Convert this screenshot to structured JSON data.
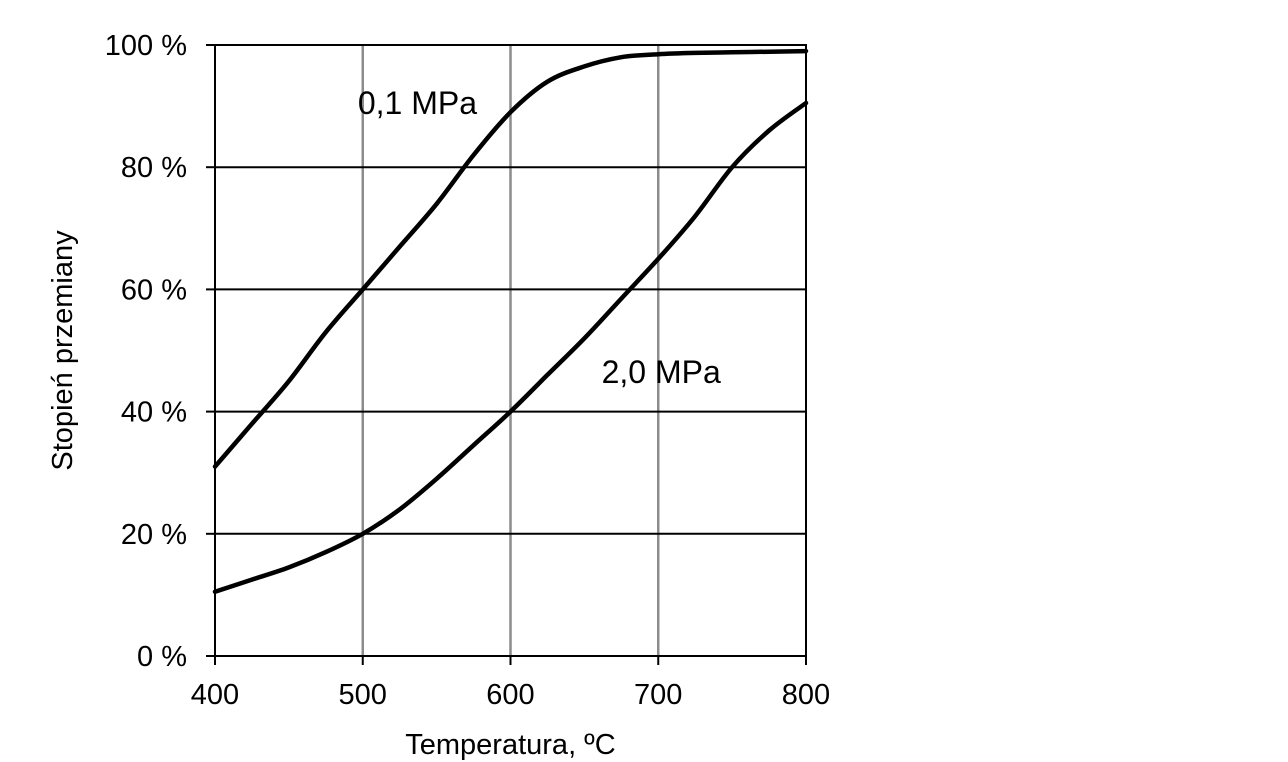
{
  "chart_data": {
    "type": "line",
    "title": "",
    "xlabel": "Temperatura, ºC",
    "ylabel": "Stopień przemiany",
    "xlim": [
      400,
      800
    ],
    "ylim": [
      0,
      100
    ],
    "x_ticks": [
      400,
      500,
      600,
      700,
      800
    ],
    "x_tick_labels": [
      "400",
      "500",
      "600",
      "700",
      "800"
    ],
    "y_ticks": [
      0,
      20,
      40,
      60,
      80,
      100
    ],
    "y_tick_labels": [
      "0 %",
      "20 %",
      "40 %",
      "60 %",
      "80 %",
      "100 %"
    ],
    "grid": true,
    "legend": "none",
    "colors": {
      "line": "#000000",
      "vertical_grid": "#8c8c8c",
      "horizontal_grid": "#000000",
      "axis": "#000000"
    },
    "series": [
      {
        "name": "0,1 MPa",
        "x": [
          400,
          425,
          450,
          475,
          500,
          525,
          550,
          575,
          600,
          625,
          650,
          675,
          700,
          725,
          750,
          775,
          800
        ],
        "y": [
          31,
          38,
          45,
          53,
          60,
          67,
          74,
          82,
          89,
          94,
          96.5,
          98,
          98.5,
          98.7,
          98.8,
          98.9,
          99
        ]
      },
      {
        "name": "2,0 MPa",
        "x": [
          400,
          425,
          450,
          475,
          500,
          525,
          550,
          575,
          600,
          625,
          650,
          675,
          700,
          725,
          750,
          775,
          800
        ],
        "y": [
          10.5,
          12.5,
          14.5,
          17,
          20,
          24,
          29,
          34.5,
          40,
          46,
          52,
          58.5,
          65,
          72,
          80,
          86,
          90.5
        ]
      }
    ],
    "annotations": [
      {
        "text": "0,1 MPa",
        "x": 537,
        "y": 90.5
      },
      {
        "text": "2,0 MPa",
        "x": 702,
        "y": 46.5
      }
    ]
  }
}
